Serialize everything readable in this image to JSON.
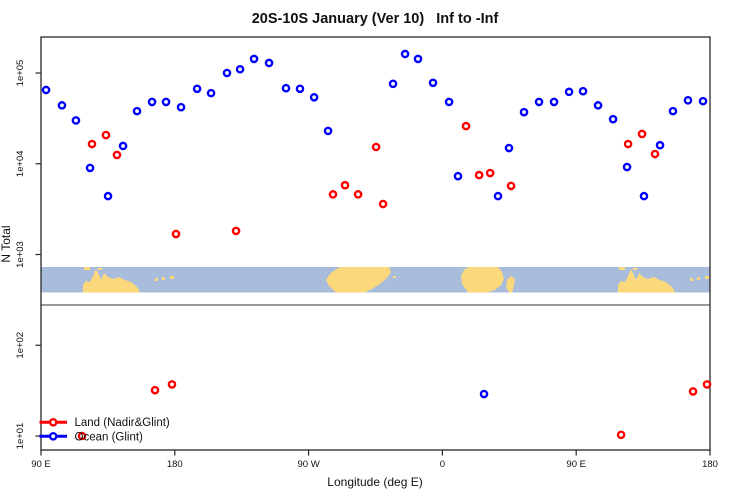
{
  "title": "20S-10S January (Ver 10)   Inf to -Inf",
  "axes": {
    "x_label": "Longitude (deg E)",
    "y_label": "N Total",
    "x_ticks": [
      {
        "lon": 90,
        "label": "90 E"
      },
      {
        "lon": 180,
        "label": "180"
      },
      {
        "lon": 270,
        "label": "90 W"
      },
      {
        "lon": 360,
        "label": "0"
      },
      {
        "lon": 450,
        "label": "90 E"
      },
      {
        "lon": 540,
        "label": "180"
      }
    ],
    "y_ticks": [
      {
        "value": 10,
        "label": "1e+01"
      },
      {
        "value": 100,
        "label": "1e+02"
      },
      {
        "value": 1000,
        "label": "1e+03"
      },
      {
        "value": 10000,
        "label": "1e+04"
      },
      {
        "value": 100000,
        "label": "1e+05"
      }
    ]
  },
  "legend": {
    "items": [
      {
        "label": "Land (Nadir&Glint)",
        "color": "#FF0000"
      },
      {
        "label": "Ocean (Glint)",
        "color": "#0000FF"
      }
    ]
  },
  "chart_data": {
    "type": "scatter",
    "title": "20S-10S January (Ver 10)   Inf to -Inf",
    "xlabel": "Longitude (deg E)",
    "ylabel": "N Total",
    "x_range_deg_east": [
      90,
      540
    ],
    "y_scale": "log10",
    "ylim": [
      10,
      250000
    ],
    "grid": false,
    "legend_position": "bottom-left",
    "marker": "open-circle",
    "series": [
      {
        "name": "Ocean (Glint)",
        "color": "#0000FF",
        "points": [
          [
            93.4,
            65000
          ],
          [
            104.1,
            44000
          ],
          [
            113.5,
            30000
          ],
          [
            123.0,
            9000
          ],
          [
            135.1,
            4400
          ],
          [
            145.2,
            15700
          ],
          [
            154.6,
            38000
          ],
          [
            164.7,
            48000
          ],
          [
            174.1,
            48000
          ],
          [
            184.2,
            42000
          ],
          [
            195.0,
            67000
          ],
          [
            204.4,
            60000
          ],
          [
            215.1,
            100000
          ],
          [
            223.9,
            110000
          ],
          [
            233.3,
            143000
          ],
          [
            243.4,
            129000
          ],
          [
            254.8,
            68000
          ],
          [
            264.2,
            67000
          ],
          [
            273.7,
            54000
          ],
          [
            283.1,
            23000
          ],
          [
            326.8,
            76000
          ],
          [
            334.9,
            162000
          ],
          [
            343.6,
            143000
          ],
          [
            353.7,
            78000
          ],
          [
            364.5,
            48000
          ],
          [
            370.5,
            7300
          ],
          [
            397.4,
            4400
          ],
          [
            404.8,
            14900
          ],
          [
            414.9,
            37000
          ],
          [
            425.0,
            48000
          ],
          [
            435.1,
            48000
          ],
          [
            445.2,
            62000
          ],
          [
            454.6,
            63000
          ],
          [
            464.7,
            44000
          ],
          [
            474.8,
            31000
          ],
          [
            484.2,
            9200
          ],
          [
            495.6,
            4400
          ],
          [
            506.4,
            16000
          ],
          [
            515.1,
            38000
          ],
          [
            525.2,
            50000
          ],
          [
            535.3,
            49000
          ],
          [
            388.0,
            29
          ]
        ]
      },
      {
        "name": "Land (Nadir&Glint)",
        "color": "#FF0000",
        "points": [
          [
            124.3,
            16500
          ],
          [
            133.7,
            20700
          ],
          [
            141.1,
            12500
          ],
          [
            180.8,
            1680
          ],
          [
            221.2,
            1820
          ],
          [
            286.4,
            4600
          ],
          [
            294.5,
            5800
          ],
          [
            303.3,
            4600
          ],
          [
            315.4,
            15300
          ],
          [
            320.1,
            3600
          ],
          [
            375.9,
            26000
          ],
          [
            384.7,
            7500
          ],
          [
            392.1,
            7900
          ],
          [
            406.2,
            5700
          ],
          [
            484.9,
            16500
          ],
          [
            494.3,
            21300
          ],
          [
            503.0,
            12800
          ],
          [
            117.6,
            10
          ],
          [
            166.7,
            32
          ],
          [
            178.1,
            37
          ],
          [
            480.2,
            10.3
          ],
          [
            528.6,
            31
          ],
          [
            538.0,
            37
          ]
        ]
      }
    ]
  },
  "map": {
    "description": "coastline strip for latitude band 20S-10S",
    "ocean_color": "#A8BDDC",
    "land_color": "#FCD87D",
    "land_polygons": [
      [
        [
          42,
          25.5
        ],
        [
          42,
          18
        ],
        [
          45,
          14
        ],
        [
          49,
          15
        ],
        [
          52,
          9
        ],
        [
          55,
          2
        ],
        [
          58,
          8
        ],
        [
          60,
          13
        ],
        [
          63,
          6
        ],
        [
          67,
          10
        ],
        [
          72,
          12
        ],
        [
          78,
          10
        ],
        [
          84,
          13
        ],
        [
          90,
          15
        ],
        [
          95,
          19
        ],
        [
          98,
          23
        ],
        [
          99,
          25.5
        ]
      ],
      [
        [
          285,
          13
        ],
        [
          289,
          7
        ],
        [
          294,
          3
        ],
        [
          299,
          0
        ],
        [
          348,
          0
        ],
        [
          350,
          5
        ],
        [
          346,
          11
        ],
        [
          339,
          17
        ],
        [
          331,
          22
        ],
        [
          324,
          25.5
        ],
        [
          295,
          25.5
        ],
        [
          288,
          19
        ]
      ],
      [
        [
          420,
          9
        ],
        [
          423,
          3
        ],
        [
          428,
          0
        ],
        [
          457,
          0
        ],
        [
          461,
          5
        ],
        [
          463,
          12
        ],
        [
          460,
          18
        ],
        [
          454,
          23
        ],
        [
          446,
          25.5
        ],
        [
          427,
          25.5
        ],
        [
          421,
          17
        ]
      ],
      [
        [
          468,
          25.5
        ],
        [
          465,
          20
        ],
        [
          466,
          13
        ],
        [
          470,
          9
        ],
        [
          474,
          12
        ],
        [
          473,
          19
        ],
        [
          471,
          25.5
        ]
      ],
      [
        [
          577,
          25.5
        ],
        [
          577,
          18
        ],
        [
          580,
          14
        ],
        [
          584,
          15
        ],
        [
          587,
          9
        ],
        [
          590,
          2
        ],
        [
          593,
          8
        ],
        [
          595,
          13
        ],
        [
          598,
          6
        ],
        [
          602,
          10
        ],
        [
          607,
          12
        ],
        [
          613,
          10
        ],
        [
          619,
          13
        ],
        [
          625,
          15
        ],
        [
          630,
          19
        ],
        [
          633,
          23
        ],
        [
          634,
          25.5
        ]
      ]
    ],
    "land_rects": [
      [
        43,
        0,
        6,
        3
      ],
      [
        57,
        1,
        4,
        2
      ],
      [
        114,
        11,
        3,
        3
      ],
      [
        121,
        10,
        3,
        3
      ],
      [
        129,
        9,
        4,
        3
      ],
      [
        352,
        9,
        3,
        2
      ],
      [
        578,
        0,
        6,
        3
      ],
      [
        592,
        1,
        4,
        2
      ],
      [
        649,
        11,
        3,
        3
      ],
      [
        656,
        10,
        3,
        3
      ],
      [
        664,
        9,
        4,
        3
      ]
    ]
  }
}
